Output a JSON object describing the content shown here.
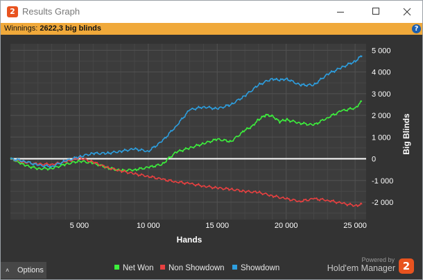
{
  "window": {
    "title": "Results Graph",
    "app_icon_glyph": "2",
    "buttons": [
      "minimize-icon",
      "maximize-icon",
      "close-icon"
    ]
  },
  "banner": {
    "label": "Winnings:",
    "value": "2622,3 big blinds",
    "background": "#f0a93a",
    "help_icon": "?"
  },
  "footer": {
    "options_label": "Options",
    "options_caret": "˄",
    "powered_by": "Powered by",
    "brand": "Hold'em Manager",
    "brand_logo_glyph": "2"
  },
  "chart_data": {
    "type": "line",
    "xlabel": "Hands",
    "ylabel": "Big Blinds",
    "xlim": [
      0,
      25800
    ],
    "ylim": [
      -2800,
      5300
    ],
    "xticks": [
      5000,
      10000,
      15000,
      20000,
      25000
    ],
    "xtick_labels": [
      "5 000",
      "10 000",
      "15 000",
      "20 000",
      "25 000"
    ],
    "yticks": [
      -2000,
      -1000,
      0,
      1000,
      2000,
      3000,
      4000,
      5000
    ],
    "ytick_labels": [
      "-2 000",
      "-1 000",
      "0",
      "1 000",
      "2 000",
      "3 000",
      "4 000",
      "5 000"
    ],
    "grid": true,
    "legend_position": "bottom",
    "series": [
      {
        "name": "Net Won",
        "color": "#3cf03c",
        "x": [
          0,
          500,
          1000,
          2000,
          3000,
          4000,
          5000,
          6000,
          7000,
          8000,
          9000,
          10000,
          11000,
          12000,
          13000,
          14000,
          15000,
          16000,
          17000,
          17500,
          18000,
          18500,
          19000,
          19500,
          20000,
          21000,
          22000,
          23000,
          24000,
          25000,
          25500
        ],
        "y": [
          0,
          -100,
          -300,
          -450,
          -450,
          -250,
          -100,
          -200,
          -400,
          -550,
          -500,
          -400,
          -250,
          300,
          500,
          700,
          900,
          800,
          1300,
          1500,
          1800,
          2000,
          2000,
          1700,
          1800,
          1650,
          1550,
          1900,
          2200,
          2350,
          2650
        ]
      },
      {
        "name": "Non Showdown",
        "color": "#e84040",
        "x": [
          0,
          1000,
          2000,
          3000,
          4000,
          5000,
          6000,
          7000,
          8000,
          9000,
          10000,
          11000,
          12000,
          13000,
          14000,
          15000,
          16000,
          17000,
          18000,
          19000,
          20000,
          21000,
          22000,
          23000,
          24000,
          25000,
          25500
        ],
        "y": [
          0,
          -150,
          -250,
          -250,
          -150,
          50,
          -150,
          -400,
          -550,
          -700,
          -800,
          -950,
          -1050,
          -1150,
          -1250,
          -1350,
          -1400,
          -1500,
          -1550,
          -1700,
          -1850,
          -1950,
          -1850,
          -1900,
          -2050,
          -2150,
          -2100
        ]
      },
      {
        "name": "Showdown",
        "color": "#2d9fe0",
        "x": [
          0,
          1000,
          2000,
          3000,
          4000,
          5000,
          6000,
          7000,
          8000,
          9000,
          10000,
          11000,
          12000,
          13000,
          14000,
          15000,
          16000,
          17000,
          18000,
          19000,
          19500,
          20000,
          21000,
          22000,
          23000,
          24000,
          25000,
          25500
        ],
        "y": [
          0,
          -100,
          -300,
          -350,
          -100,
          100,
          250,
          250,
          350,
          450,
          350,
          800,
          1500,
          2250,
          2400,
          2300,
          2500,
          2900,
          3400,
          3700,
          3600,
          3700,
          3400,
          3400,
          3900,
          4200,
          4500,
          4750
        ]
      }
    ]
  }
}
